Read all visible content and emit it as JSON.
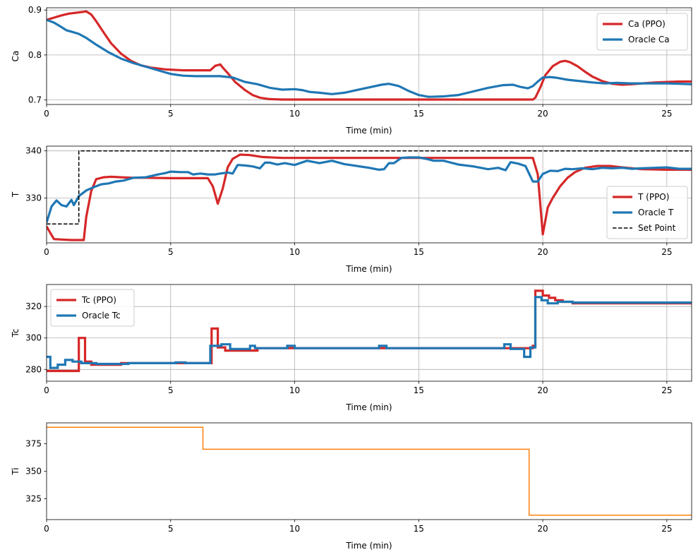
{
  "chart_data": [
    {
      "type": "line",
      "ylabel": "Ca",
      "xlabel": "Time (min)",
      "xlim": [
        0,
        26
      ],
      "ylim": [
        0.69,
        0.905
      ],
      "xticks": [
        0,
        5,
        10,
        15,
        20,
        25
      ],
      "yticks": [
        0.7,
        0.8,
        0.9
      ],
      "ytick_labels": [
        "0.7",
        "0.8",
        "0.9"
      ],
      "grid": true,
      "legend": {
        "position": "top-right"
      },
      "series": [
        {
          "name": "Ca (PPO)",
          "color": "#d62728",
          "step": false,
          "x": [
            0,
            0.3,
            0.6,
            0.9,
            1.2,
            1.5,
            1.6,
            1.8,
            2.0,
            2.3,
            2.6,
            3.0,
            3.4,
            3.8,
            4.2,
            4.8,
            5.5,
            6.0,
            6.6,
            6.8,
            7.0,
            7.1,
            7.3,
            7.6,
            8.0,
            8.3,
            8.6,
            9.0,
            9.5,
            10,
            12,
            14,
            16,
            18,
            19.6,
            19.7,
            19.9,
            20.1,
            20.4,
            20.7,
            20.9,
            21.1,
            21.4,
            21.7,
            22.0,
            22.4,
            22.8,
            23.2,
            23.6,
            24.0,
            24.5,
            25,
            25.5,
            26
          ],
          "y": [
            0.878,
            0.883,
            0.888,
            0.892,
            0.894,
            0.896,
            0.897,
            0.89,
            0.875,
            0.85,
            0.826,
            0.803,
            0.787,
            0.777,
            0.772,
            0.768,
            0.766,
            0.766,
            0.766,
            0.776,
            0.779,
            0.772,
            0.76,
            0.74,
            0.722,
            0.711,
            0.705,
            0.702,
            0.701,
            0.701,
            0.701,
            0.701,
            0.701,
            0.701,
            0.701,
            0.705,
            0.728,
            0.755,
            0.775,
            0.785,
            0.787,
            0.784,
            0.775,
            0.763,
            0.752,
            0.742,
            0.736,
            0.734,
            0.735,
            0.737,
            0.739,
            0.74,
            0.741,
            0.741
          ]
        },
        {
          "name": "Oracle Ca",
          "color": "#1f77b4",
          "step": false,
          "x": [
            0,
            0.3,
            0.6,
            0.8,
            1.0,
            1.3,
            1.6,
            2.0,
            2.5,
            3.0,
            3.5,
            4.0,
            4.5,
            5.0,
            5.5,
            6.0,
            6.5,
            7.0,
            7.5,
            8.0,
            8.5,
            9.0,
            9.5,
            10,
            10.3,
            10.6,
            11,
            11.5,
            12,
            12.5,
            13,
            13.5,
            13.8,
            14.2,
            14.6,
            15,
            15.4,
            16,
            16.6,
            17.2,
            17.8,
            18.4,
            18.8,
            19.1,
            19.4,
            19.6,
            19.8,
            20.0,
            20.3,
            20.6,
            21,
            21.5,
            22,
            22.5,
            23,
            23.5,
            24,
            24.5,
            25,
            25.5,
            26
          ],
          "y": [
            0.878,
            0.872,
            0.862,
            0.855,
            0.852,
            0.847,
            0.838,
            0.823,
            0.806,
            0.792,
            0.782,
            0.774,
            0.766,
            0.758,
            0.754,
            0.753,
            0.753,
            0.753,
            0.75,
            0.74,
            0.735,
            0.727,
            0.723,
            0.724,
            0.722,
            0.718,
            0.716,
            0.713,
            0.716,
            0.722,
            0.728,
            0.734,
            0.736,
            0.731,
            0.72,
            0.711,
            0.707,
            0.708,
            0.711,
            0.719,
            0.727,
            0.733,
            0.734,
            0.729,
            0.726,
            0.731,
            0.741,
            0.75,
            0.751,
            0.749,
            0.745,
            0.742,
            0.739,
            0.737,
            0.738,
            0.737,
            0.737,
            0.737,
            0.737,
            0.736,
            0.735
          ]
        }
      ]
    },
    {
      "type": "line",
      "ylabel": "T",
      "xlabel": "Time (min)",
      "xlim": [
        0,
        26
      ],
      "ylim": [
        320.5,
        341
      ],
      "xticks": [
        0,
        5,
        10,
        15,
        20,
        25
      ],
      "yticks": [
        330,
        340
      ],
      "ytick_labels": [
        "330",
        "340"
      ],
      "grid": true,
      "legend": {
        "position": "lower-right"
      },
      "series": [
        {
          "name": "T (PPO)",
          "color": "#d62728",
          "step": false,
          "x": [
            0,
            0.15,
            0.3,
            0.6,
            1.0,
            1.5,
            1.6,
            1.8,
            2.0,
            2.3,
            2.6,
            3.0,
            3.5,
            4.0,
            5.0,
            6.0,
            6.5,
            6.7,
            6.9,
            7.1,
            7.3,
            7.5,
            7.8,
            8.2,
            8.7,
            9.5,
            10,
            12,
            14,
            16,
            18,
            19.6,
            19.8,
            20.0,
            20.2,
            20.4,
            20.7,
            21.0,
            21.3,
            21.7,
            22.2,
            22.7,
            23.2,
            24,
            25,
            26
          ],
          "y": [
            324,
            322.6,
            321.3,
            321.2,
            321.1,
            321.1,
            326,
            331.5,
            334,
            334.4,
            334.5,
            334.4,
            334.3,
            334.3,
            334.2,
            334.2,
            334.2,
            332.5,
            328.8,
            332,
            336.5,
            338.3,
            339.2,
            339.1,
            338.7,
            338.5,
            338.5,
            338.5,
            338.5,
            338.5,
            338.5,
            338.5,
            335,
            322.3,
            328,
            330,
            332.5,
            334.3,
            335.5,
            336.4,
            336.8,
            336.8,
            336.5,
            336.1,
            336,
            336
          ]
        },
        {
          "name": "Oracle T",
          "color": "#1f77b4",
          "step": false,
          "x": [
            0,
            0.2,
            0.4,
            0.6,
            0.8,
            1.0,
            1.1,
            1.3,
            1.6,
            1.9,
            2.2,
            2.5,
            2.8,
            3.1,
            3.5,
            4.0,
            4.5,
            4.8,
            5.0,
            5.4,
            5.7,
            5.9,
            6.2,
            6.5,
            6.8,
            7.0,
            7.3,
            7.5,
            7.7,
            8.0,
            8.3,
            8.6,
            8.8,
            9.0,
            9.3,
            9.6,
            10,
            10.5,
            11,
            11.5,
            12,
            12.5,
            13,
            13.4,
            13.6,
            13.8,
            14.0,
            14.3,
            14.6,
            15,
            15.3,
            15.6,
            16,
            16.6,
            17.2,
            17.8,
            18.2,
            18.5,
            18.7,
            19.0,
            19.3,
            19.6,
            19.8,
            20,
            20.3,
            20.6,
            20.9,
            21.2,
            21.6,
            22,
            22.4,
            22.8,
            23.2,
            23.6,
            24,
            24.5,
            25,
            25.5,
            26
          ],
          "y": [
            324.8,
            328.2,
            329.5,
            328.5,
            328.2,
            329.6,
            328.5,
            330.4,
            331.6,
            332.3,
            332.9,
            333.1,
            333.5,
            333.7,
            334.3,
            334.4,
            335.0,
            335.3,
            335.6,
            335.5,
            335.5,
            335,
            335.2,
            335,
            335,
            335.2,
            335.4,
            335.2,
            337,
            336.9,
            336.7,
            336.3,
            337.5,
            337.5,
            337.1,
            337.4,
            337,
            337.9,
            337.4,
            337.9,
            337.2,
            336.8,
            336.4,
            336,
            336.1,
            337.4,
            337.4,
            338.5,
            338.6,
            338.6,
            338.3,
            337.9,
            337.9,
            337.1,
            336.7,
            336.1,
            336.4,
            335.9,
            337.6,
            337.3,
            336.8,
            333.5,
            333.5,
            335.1,
            335.8,
            335.7,
            336.2,
            336.1,
            336.3,
            336.1,
            336.4,
            336.3,
            336.4,
            336.2,
            336.3,
            336.4,
            336.5,
            336.2,
            336.2
          ]
        },
        {
          "name": "Set Point",
          "color": "#000000",
          "step": true,
          "dashed": true,
          "x": [
            0,
            1.3,
            1.3,
            26
          ],
          "y": [
            324.5,
            324.5,
            340,
            340
          ]
        }
      ]
    },
    {
      "type": "line",
      "ylabel": "Tc",
      "xlabel": "Time (min)",
      "xlim": [
        0,
        26
      ],
      "ylim": [
        272.5,
        334
      ],
      "xticks": [
        0,
        5,
        10,
        15,
        20,
        25
      ],
      "yticks": [
        280,
        300,
        320
      ],
      "ytick_labels": [
        "280",
        "300",
        "320"
      ],
      "grid": true,
      "legend": {
        "position": "top-left"
      },
      "series": [
        {
          "name": "Tc (PPO)",
          "color": "#d62728",
          "step": true,
          "x": [
            0,
            1.3,
            1.3,
            1.55,
            1.55,
            1.8,
            1.8,
            3.0,
            3.0,
            6.65,
            6.65,
            6.9,
            6.9,
            7.2,
            7.2,
            8.5,
            8.5,
            19.6,
            19.6,
            19.7,
            19.7,
            20.0,
            20.0,
            20.25,
            20.25,
            20.5,
            20.5,
            20.8,
            20.8,
            21.2,
            21.2,
            26
          ],
          "y": [
            279,
            279,
            300,
            300,
            285,
            285,
            283,
            283,
            284,
            284,
            306,
            306,
            294,
            294,
            292,
            292,
            293.5,
            293.5,
            295,
            295,
            330,
            330,
            327,
            327,
            325.5,
            325.5,
            324,
            324,
            323,
            323,
            322,
            322
          ]
        },
        {
          "name": "Oracle Tc",
          "color": "#1f77b4",
          "step": true,
          "x": [
            0,
            0.15,
            0.15,
            0.45,
            0.45,
            0.75,
            0.75,
            1.05,
            1.05,
            1.4,
            1.4,
            2.0,
            2.0,
            3.3,
            3.3,
            5.2,
            5.2,
            5.6,
            5.6,
            6.6,
            6.6,
            7.05,
            7.05,
            7.4,
            7.4,
            8.2,
            8.2,
            8.4,
            8.4,
            9.7,
            9.7,
            10.0,
            10.0,
            13.4,
            13.4,
            13.7,
            13.7,
            18.45,
            18.45,
            18.7,
            18.7,
            19.25,
            19.25,
            19.5,
            19.5,
            19.7,
            19.7,
            19.95,
            19.95,
            20.2,
            20.2,
            20.6,
            20.6,
            21.2,
            21.2,
            26
          ],
          "y": [
            288,
            288,
            281,
            281,
            283,
            283,
            286,
            286,
            285,
            285,
            284,
            284,
            283.5,
            283.5,
            284,
            284,
            284.5,
            284.5,
            284,
            284,
            295,
            295,
            296,
            296,
            293,
            293,
            295,
            295,
            293.5,
            293.5,
            295,
            295,
            293.5,
            293.5,
            295,
            295,
            293.5,
            293.5,
            296,
            296,
            293,
            293,
            288,
            288,
            294,
            294,
            326,
            326,
            324,
            324,
            322,
            322,
            323,
            323,
            322.5,
            322.5
          ]
        }
      ]
    },
    {
      "type": "line",
      "ylabel": "Ti",
      "xlabel": "Time (min)",
      "xlim": [
        0,
        26
      ],
      "ylim": [
        306,
        394
      ],
      "xticks": [
        0,
        5,
        10,
        15,
        20,
        25
      ],
      "yticks": [
        325,
        350,
        375
      ],
      "ytick_labels": [
        "325",
        "350",
        "375"
      ],
      "grid": false,
      "series": [
        {
          "color": "#ff7f0e",
          "step": true,
          "thin": true,
          "x": [
            0,
            6.3,
            6.3,
            19.45,
            19.45,
            26
          ],
          "y": [
            390,
            390,
            370,
            370,
            310,
            310
          ]
        }
      ]
    }
  ]
}
